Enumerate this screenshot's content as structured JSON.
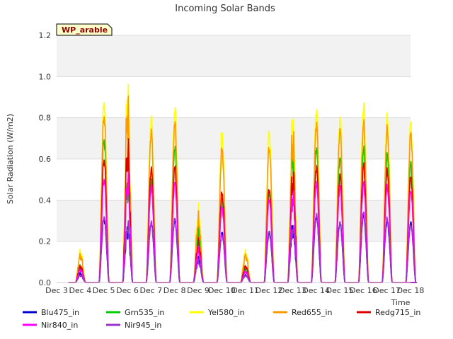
{
  "chart_data": {
    "type": "line",
    "title": "Incoming Solar Bands",
    "xlabel": "Time",
    "ylabel": "Solar Radiation (W/m2)",
    "tag": "WP_arable",
    "ylim": [
      0,
      1.2
    ],
    "yticks": [
      "0.0",
      "0.2",
      "0.4",
      "0.6",
      "0.8",
      "1.0",
      "1.2"
    ],
    "xlim_days": [
      3,
      18
    ],
    "xticks": [
      "Dec 3",
      "Dec 4",
      "Dec 5",
      "Dec 6",
      "Dec 7",
      "Dec 8",
      "Dec 9",
      "Dec 10",
      "Dec 11",
      "Dec 12",
      "Dec 13",
      "Dec 14",
      "Dec 15",
      "Dec 16",
      "Dec 17",
      "Dec 18"
    ],
    "grid": true,
    "legend_position": "bottom",
    "day_peak_dates": [
      "Dec 3",
      "Dec 4",
      "Dec 5",
      "Dec 6",
      "Dec 7",
      "Dec 8",
      "Dec 9",
      "Dec 10",
      "Dec 11",
      "Dec 12",
      "Dec 13",
      "Dec 14",
      "Dec 15",
      "Dec 16",
      "Dec 17"
    ],
    "series": [
      {
        "name": "Blu475_in",
        "color": "#0000cc",
        "peaks": [
          0.05,
          0.32,
          0.3,
          0.3,
          0.31,
          0.13,
          0.25,
          0.04,
          0.25,
          0.31,
          0.33,
          0.3,
          0.34,
          0.31,
          0.3
        ]
      },
      {
        "name": "Grn535_in",
        "color": "#00cc00",
        "peaks": [
          0.09,
          0.72,
          0.55,
          0.52,
          0.68,
          0.28,
          0.42,
          0.07,
          0.45,
          0.7,
          0.68,
          0.63,
          0.67,
          0.64,
          0.6
        ]
      },
      {
        "name": "Yel580_in",
        "color": "#ffff00",
        "peaks": [
          0.17,
          0.91,
          1.04,
          0.83,
          0.87,
          0.39,
          0.75,
          0.17,
          0.76,
          0.88,
          0.87,
          0.83,
          0.88,
          0.83,
          0.8
        ]
      },
      {
        "name": "Red655_in",
        "color": "#ff9900",
        "peaks": [
          0.15,
          0.84,
          0.96,
          0.76,
          0.8,
          0.35,
          0.67,
          0.15,
          0.68,
          0.8,
          0.8,
          0.77,
          0.8,
          0.77,
          0.75
        ]
      },
      {
        "name": "Redg715_in",
        "color": "#dd0000",
        "peaks": [
          0.09,
          0.62,
          0.73,
          0.57,
          0.58,
          0.22,
          0.45,
          0.09,
          0.47,
          0.58,
          0.58,
          0.54,
          0.59,
          0.56,
          0.53
        ]
      },
      {
        "name": "Nir840_in",
        "color": "#ff00ff",
        "peaks": [
          0.07,
          0.52,
          0.56,
          0.48,
          0.5,
          0.18,
          0.38,
          0.06,
          0.42,
          0.48,
          0.5,
          0.48,
          0.5,
          0.48,
          0.46
        ]
      },
      {
        "name": "Nir945_in",
        "color": "#9933cc",
        "peaks": [
          0.04,
          0.33,
          0.31,
          0.3,
          0.32,
          0.12,
          0.24,
          0.04,
          0.26,
          0.3,
          0.34,
          0.3,
          0.35,
          0.32,
          0.29
        ]
      }
    ]
  }
}
